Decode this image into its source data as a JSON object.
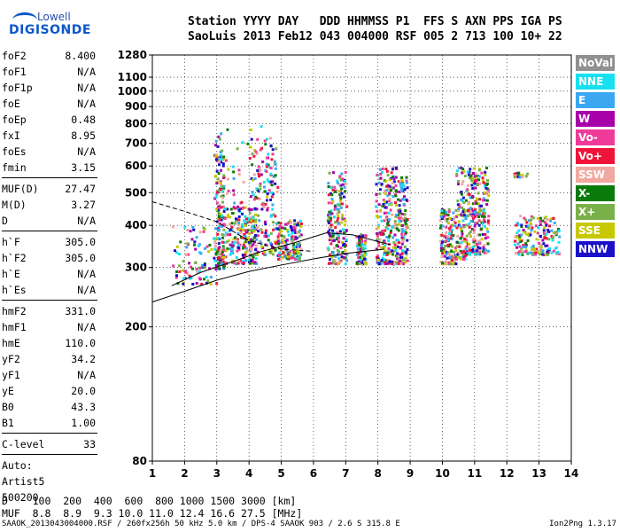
{
  "logo": {
    "top": "Lowell",
    "bottom": "DIGISONDE"
  },
  "header": {
    "line1": "Station YYYY DAY   DDD HHMMSS P1  FFS S AXN PPS IGA PS",
    "line2": "SaoLuis 2013 Feb12 043 004000 RSF 005 2 713 100 10+ 22"
  },
  "params": [
    {
      "k": "foF2",
      "v": "8.400"
    },
    {
      "k": "foF1",
      "v": "N/A"
    },
    {
      "k": "foF1p",
      "v": "N/A"
    },
    {
      "k": "foE",
      "v": "N/A"
    },
    {
      "k": "foEp",
      "v": "0.48"
    },
    {
      "k": "fxI",
      "v": "8.95"
    },
    {
      "k": "foEs",
      "v": "N/A"
    },
    {
      "k": "fmin",
      "v": "3.15"
    },
    {
      "k": "MUF(D)",
      "v": "27.47"
    },
    {
      "k": "M(D)",
      "v": "3.27"
    },
    {
      "k": "D",
      "v": "N/A"
    },
    {
      "k": "h`F",
      "v": "305.0"
    },
    {
      "k": "h`F2",
      "v": "305.0"
    },
    {
      "k": "h`E",
      "v": "N/A"
    },
    {
      "k": "h`Es",
      "v": "N/A"
    },
    {
      "k": "hmF2",
      "v": "331.0"
    },
    {
      "k": "hmF1",
      "v": "N/A"
    },
    {
      "k": "hmE",
      "v": "110.0"
    },
    {
      "k": "yF2",
      "v": "34.2"
    },
    {
      "k": "yF1",
      "v": "N/A"
    },
    {
      "k": "yE",
      "v": "20.0"
    },
    {
      "k": "B0",
      "v": "43.3"
    },
    {
      "k": "B1",
      "v": "1.00"
    },
    {
      "k": "C-level",
      "v": "33"
    }
  ],
  "auto": [
    "Auto:",
    "Artist5",
    "500200"
  ],
  "legend": [
    {
      "label": "NoVal",
      "color": "#909090"
    },
    {
      "label": "NNE",
      "color": "#19e0f0"
    },
    {
      "label": "E",
      "color": "#3aa7f0"
    },
    {
      "label": "W",
      "color": "#a800a8"
    },
    {
      "label": "Vo-",
      "color": "#f03a9a"
    },
    {
      "label": "Vo+",
      "color": "#f0143a"
    },
    {
      "label": "SSW",
      "color": "#f0a8a0"
    },
    {
      "label": "X-",
      "color": "#0a7a0a"
    },
    {
      "label": "X+",
      "color": "#7ab04a"
    },
    {
      "label": "SSE",
      "color": "#c8c800"
    },
    {
      "label": "NNW",
      "color": "#1a10c8"
    }
  ],
  "chart_data": {
    "type": "scatter",
    "xlim": [
      1,
      14
    ],
    "ylim": [
      80,
      1280
    ],
    "y_scale": "log",
    "x_ticks": [
      "1",
      "2",
      "3",
      "4",
      "5",
      "6",
      "7",
      "8",
      "9",
      "10",
      "11",
      "12",
      "13",
      "14"
    ],
    "y_ticks": [
      "80",
      "200",
      "300",
      "400",
      "500",
      "600",
      "700",
      "800",
      "900",
      "1000",
      "1100",
      "1280"
    ],
    "grid": true
  },
  "muf_table": {
    "line1": "D    100  200  400  600  800 1000 1500 3000 [km]",
    "line2": "MUF  8.8  8.9  9.3 10.0 11.0 12.4 16.6 27.5 [MHz]"
  },
  "footer": "SAAOK_2013043004000.RSF / 260fx256h 50 kHz 5.0 km / DPS-4 SAAOK 903 / 2.6 S 315.8 E",
  "version": "Ion2Png 1.3.17"
}
